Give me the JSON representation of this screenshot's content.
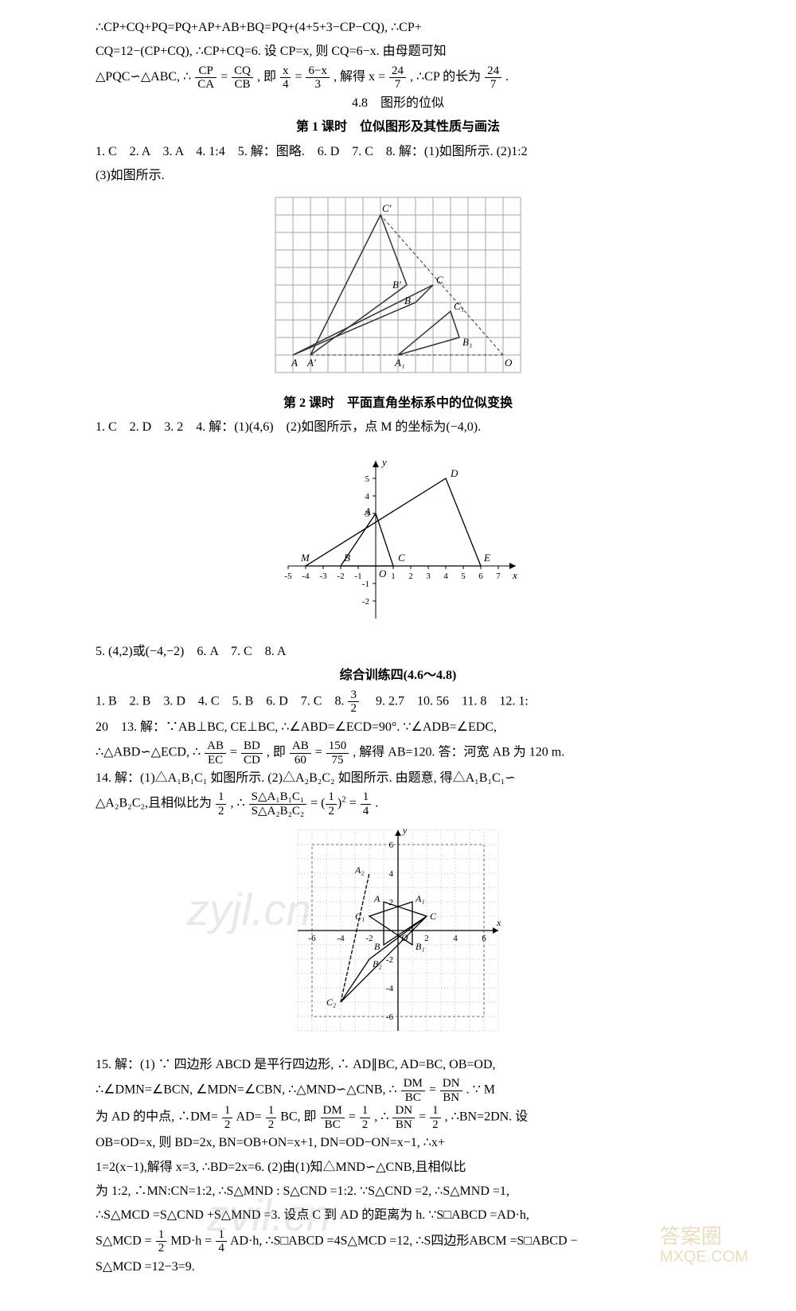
{
  "para1": {
    "l1": "∴CP+CQ+PQ=PQ+AP+AB+BQ=PQ+(4+5+3−CP−CQ), ∴CP+",
    "l2": "CQ=12−(CP+CQ), ∴CP+CQ=6. 设 CP=x, 则 CQ=6−x. 由母题可知",
    "l3_a": "△PQC∽△ABC, ∴",
    "f1n": "CP",
    "f1d": "CA",
    "l3_b": " = ",
    "f2n": "CQ",
    "f2d": "CB",
    "l3_c": ", 即 ",
    "f3n": "x",
    "f3d": "4",
    "l3_d": " = ",
    "f4n": "6−x",
    "f4d": "3",
    "l3_e": ", 解得 x = ",
    "f5n": "24",
    "f5d": "7",
    "l3_f": ", ∴CP 的长为",
    "f6n": "24",
    "f6d": "7",
    "l3_g": "."
  },
  "sec48": {
    "title": "4.8　图形的位似",
    "sub1": "第 1 课时　位似图形及其性质与画法",
    "ans1": "1. C　2. A　3. A　4. 1:4　5. 解：图略.　6. D　7. C　8. 解：(1)如图所示. (2)1:2",
    "ans2": "(3)如图所示."
  },
  "fig1": {
    "grid_cols": 14,
    "grid_rows": 10,
    "cell": 22,
    "grid_color": "#9aa",
    "axis_color": "#222",
    "O": "O",
    "labels": [
      "A",
      "B",
      "C",
      "A'",
      "B'",
      "C'",
      "A₁",
      "B₁",
      "C₁"
    ]
  },
  "sec48b": {
    "sub2": "第 2 课时　平面直角坐标系中的位似变换",
    "ans1": "1. C　2. D　3. 2　4. 解：(1)(4,6)　(2)如图所示，点 M 的坐标为(−4,0)."
  },
  "fig2": {
    "xmin": -5,
    "xmax": 8,
    "ymin": -3,
    "ymax": 6,
    "cell": 22,
    "axis_color": "#000",
    "pts": {
      "M": [
        -4,
        0
      ],
      "B": [
        -2,
        0
      ],
      "C": [
        1,
        0
      ],
      "E": [
        6,
        0
      ],
      "A": [
        0,
        3
      ],
      "D": [
        4,
        5
      ]
    },
    "xticks": [
      "-4",
      "-3",
      "-2",
      "-1",
      "",
      "1",
      "2",
      "3",
      "4",
      "5",
      "6",
      "7"
    ],
    "yticks": [
      "-2",
      "-1",
      "",
      "3",
      "4",
      "5"
    ]
  },
  "after_fig2": "5. (4,2)或(−4,−2)　6. A　7. C　8. A",
  "zh": {
    "title": "综合训练四(4.6～4.8)",
    "l1a": "1. B　2. B　3. D　4. C　5. B　6. D　7. C　8. ",
    "f8n": "3",
    "f8d": "2",
    "l1b": "　9. 2.7　10. 56　11. 8　12. 1:",
    "l2": "20　13. 解：∵AB⊥BC, CE⊥BC, ∴∠ABD=∠ECD=90°. ∵∠ADB=∠EDC,",
    "l3a": "∴△ABD∽△ECD, ∴",
    "f13an": "AB",
    "f13ad": "EC",
    "f13bn": "BD",
    "f13bd": "CD",
    "l3b": ", 即",
    "f13cn": "AB",
    "f13cd": "60",
    "f13dn": "150",
    "f13dd": "75",
    "l3c": ", 解得 AB=120. 答：河宽 AB 为 120 m.",
    "l4": "14. 解：(1)△A₁B₁C₁ 如图所示. (2)△A₂B₂C₂ 如图所示. 由题意, 得△A₁B₁C₁∽",
    "l5a": "△A₂B₂C₂,且相似比为",
    "f5n": "1",
    "f5d": "2",
    "l5b": ", ∴",
    "fr1n": "S△A₁B₁C₁",
    "fr1d": "S△A₂B₂C₂",
    "l5c": " = ",
    "fr2": "(½)²",
    "l5d": " = ",
    "fr3n": "1",
    "fr3d": "4",
    "l5e": "."
  },
  "fig3": {
    "xmin": -7,
    "xmax": 7,
    "ymin": -7,
    "ymax": 7,
    "cell": 18,
    "grid_color": "#bbb",
    "axis_color": "#000"
  },
  "q15": {
    "l1": "15. 解：(1) ∵ 四边形 ABCD 是平行四边形, ∴ AD∥BC, AD=BC, OB=OD,",
    "l2a": "∴∠DMN=∠BCN, ∠MDN=∠CBN, ∴△MND∽△CNB, ∴",
    "f2n": "DM",
    "f2d": "BC",
    "f2n2": "DN",
    "f2d2": "BN",
    "l2b": ". ∵ M",
    "l3a": "为 AD 的中点, ∴DM=",
    "f3n": "1",
    "f3d": "2",
    "l3b": "AD=",
    "l3c": "BC, 即",
    "f3cn": "DM",
    "f3cd": "BC",
    "l3d": " = ",
    "f3en": "1",
    "f3ed": "2",
    "l3e": ", ∴",
    "f3fn": "DN",
    "f3fd": "BN",
    "l3f": " = ",
    "l3g": ", ∴BN=2DN. 设",
    "l4": "OB=OD=x, 则 BD=2x, BN=OB+ON=x+1, DN=OD−ON=x−1, ∴x+",
    "l5": "1=2(x−1),解得 x=3, ∴BD=2x=6. (2)由(1)知△MND∽△CNB,且相似比",
    "l6": "为 1:2, ∴MN:CN=1:2, ∴S△MND : S△CND =1:2. ∵S△CND =2, ∴S△MND =1,",
    "l7": "∴S△MCD =S△CND +S△MND =3. 设点 C 到 AD 的距离为 h. ∵S□ABCD =AD·h,",
    "l8a": "S△MCD = ",
    "f8n": "1",
    "f8d": "2",
    "l8b": "MD·h = ",
    "f8n2": "1",
    "f8d2": "4",
    "l8c": "AD·h, ∴S□ABCD =4S△MCD =12, ∴S四边形ABCM =S□ABCD −",
    "l9": "S△MCD =12−3=9."
  },
  "watermarks": {
    "w1": "zyjl.cn",
    "w2": "zvil.cn",
    "w3a": "答案圈",
    "w3b": "MXQE.COM"
  }
}
